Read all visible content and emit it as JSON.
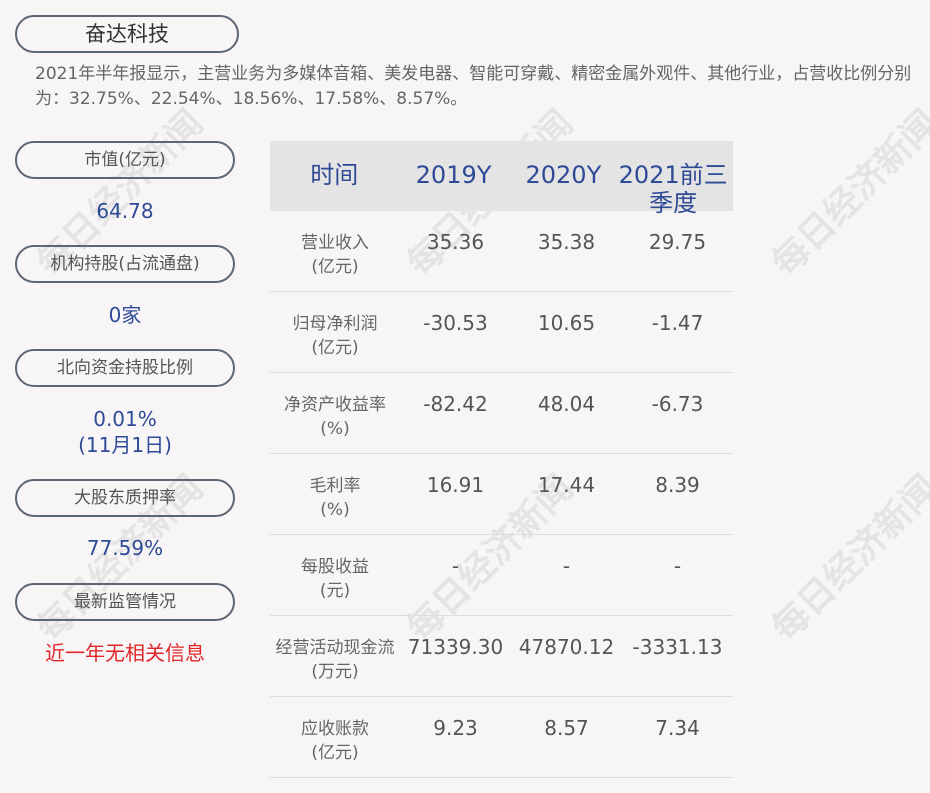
{
  "company": "奋达科技",
  "description": "2021年半年报显示，主营业务为多媒体音箱、美发电器、智能可穿戴、精密金属外观件、其他行业，占营收比例分别为：32.75%、22.54%、18.56%、17.58%、8.57%。",
  "left": [
    {
      "label": "市值(亿元)",
      "value": "64.78"
    },
    {
      "label": "机构持股(占流通盘)",
      "value": "0家"
    },
    {
      "label": "北向资金持股比例",
      "value": "0.01%",
      "value2": "(11月1日)"
    },
    {
      "label": "大股东质押率",
      "value": "77.59%"
    },
    {
      "label": "最新监管情况",
      "value": "近一年无相关信息"
    }
  ],
  "table": {
    "headers": [
      "时间",
      "2019Y",
      "2020Y",
      "2021前三季度"
    ],
    "rows": [
      {
        "label": "营业收入",
        "unit": "(亿元)",
        "values": [
          "35.36",
          "35.38",
          "29.75"
        ]
      },
      {
        "label": "归母净利润",
        "unit": "(亿元)",
        "values": [
          "-30.53",
          "10.65",
          "-1.47"
        ]
      },
      {
        "label": "净资产收益率",
        "unit": "(%)",
        "values": [
          "-82.42",
          "48.04",
          "-6.73"
        ]
      },
      {
        "label": "毛利率",
        "unit": "(%)",
        "values": [
          "16.91",
          "17.44",
          "8.39"
        ]
      },
      {
        "label": "每股收益",
        "unit": "(元)",
        "values": [
          "-",
          "-",
          "-"
        ]
      },
      {
        "label": "经营活动现金流",
        "unit": "(万元)",
        "values": [
          "71339.30",
          "47870.12",
          "-3331.13"
        ]
      },
      {
        "label": "应收账款",
        "unit": "(亿元)",
        "values": [
          "9.23",
          "8.57",
          "7.34"
        ]
      }
    ]
  },
  "watermark": "每日经济新闻",
  "colors": {
    "accent": "#2e4a97",
    "warning": "#e0272b",
    "background": "#f8f5f6"
  }
}
